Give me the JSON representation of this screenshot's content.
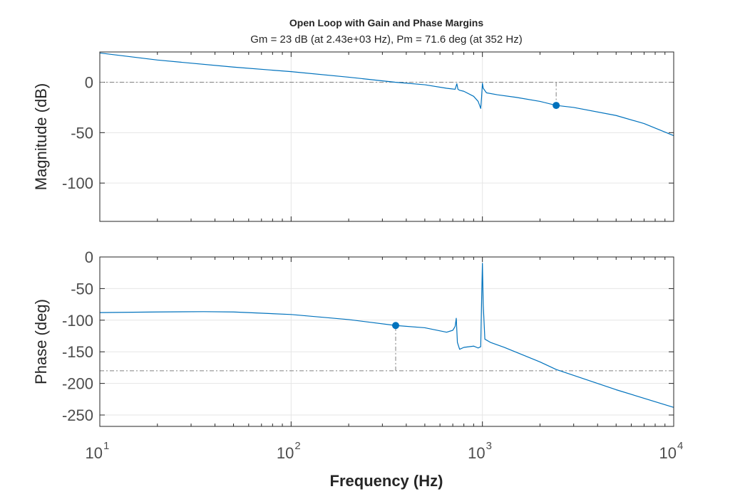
{
  "chart_data": {
    "type": "line",
    "title": "Open Loop with Gain and Phase Margins",
    "subtitle": "Gm = 23 dB (at 2.43e+03 Hz),  Pm = 71.6 deg (at 352 Hz)",
    "xlabel": "Frequency (Hz)",
    "xscale": "log",
    "xlim": [
      10,
      10000
    ],
    "xticks": [
      {
        "value": 10,
        "base": "10",
        "exp": "1"
      },
      {
        "value": 100,
        "base": "10",
        "exp": "2"
      },
      {
        "value": 1000,
        "base": "10",
        "exp": "3"
      },
      {
        "value": 10000,
        "base": "10",
        "exp": "4"
      }
    ],
    "grid": true,
    "line_color": "#0072bd",
    "reference_color": "#808080",
    "panels": [
      {
        "name": "magnitude",
        "ylabel": "Magnitude (dB)",
        "ylim": [
          -138,
          30
        ],
        "yticks": [
          0,
          -50,
          -100
        ],
        "ytick_labels": [
          "0",
          "-50",
          "-100"
        ],
        "reference_y": 0,
        "marker": {
          "x": 2430,
          "y": -23
        },
        "x": [
          10,
          20,
          50,
          100,
          200,
          350,
          500,
          650,
          720,
          735,
          745,
          760,
          800,
          900,
          950,
          980,
          990,
          1000,
          1010,
          1050,
          1200,
          1500,
          2000,
          2430,
          3000,
          5000,
          7000,
          10000
        ],
        "y": [
          29,
          22,
          15,
          10.5,
          5,
          0,
          -2.5,
          -6,
          -7,
          -1.5,
          -7,
          -8,
          -9,
          -14,
          -19,
          -26,
          -15,
          -1,
          -6,
          -10.5,
          -12.5,
          -15,
          -19,
          -23,
          -25,
          -33,
          -41,
          -53
        ]
      },
      {
        "name": "phase",
        "ylabel": "Phase (deg)",
        "ylim": [
          -268,
          0
        ],
        "yticks": [
          0,
          -50,
          -100,
          -150,
          -200,
          -250
        ],
        "ytick_labels": [
          "0",
          "-50",
          "-100",
          "-150",
          "-200",
          "-250"
        ],
        "reference_y": -180,
        "marker": {
          "x": 352,
          "y": -108.4
        },
        "x": [
          10,
          20,
          35,
          50,
          100,
          200,
          352,
          500,
          650,
          700,
          720,
          730,
          740,
          760,
          800,
          900,
          950,
          980,
          990,
          1000,
          1010,
          1030,
          1100,
          1300,
          2000,
          2430,
          5000,
          10000
        ],
        "y": [
          -88,
          -87,
          -86.5,
          -87,
          -91,
          -99,
          -108.4,
          -112,
          -119,
          -116,
          -110,
          -97,
          -135,
          -146,
          -143,
          -141,
          -144,
          -142,
          -70,
          -10,
          -75,
          -130,
          -135,
          -143,
          -166,
          -178,
          -210,
          -238
        ]
      }
    ]
  }
}
